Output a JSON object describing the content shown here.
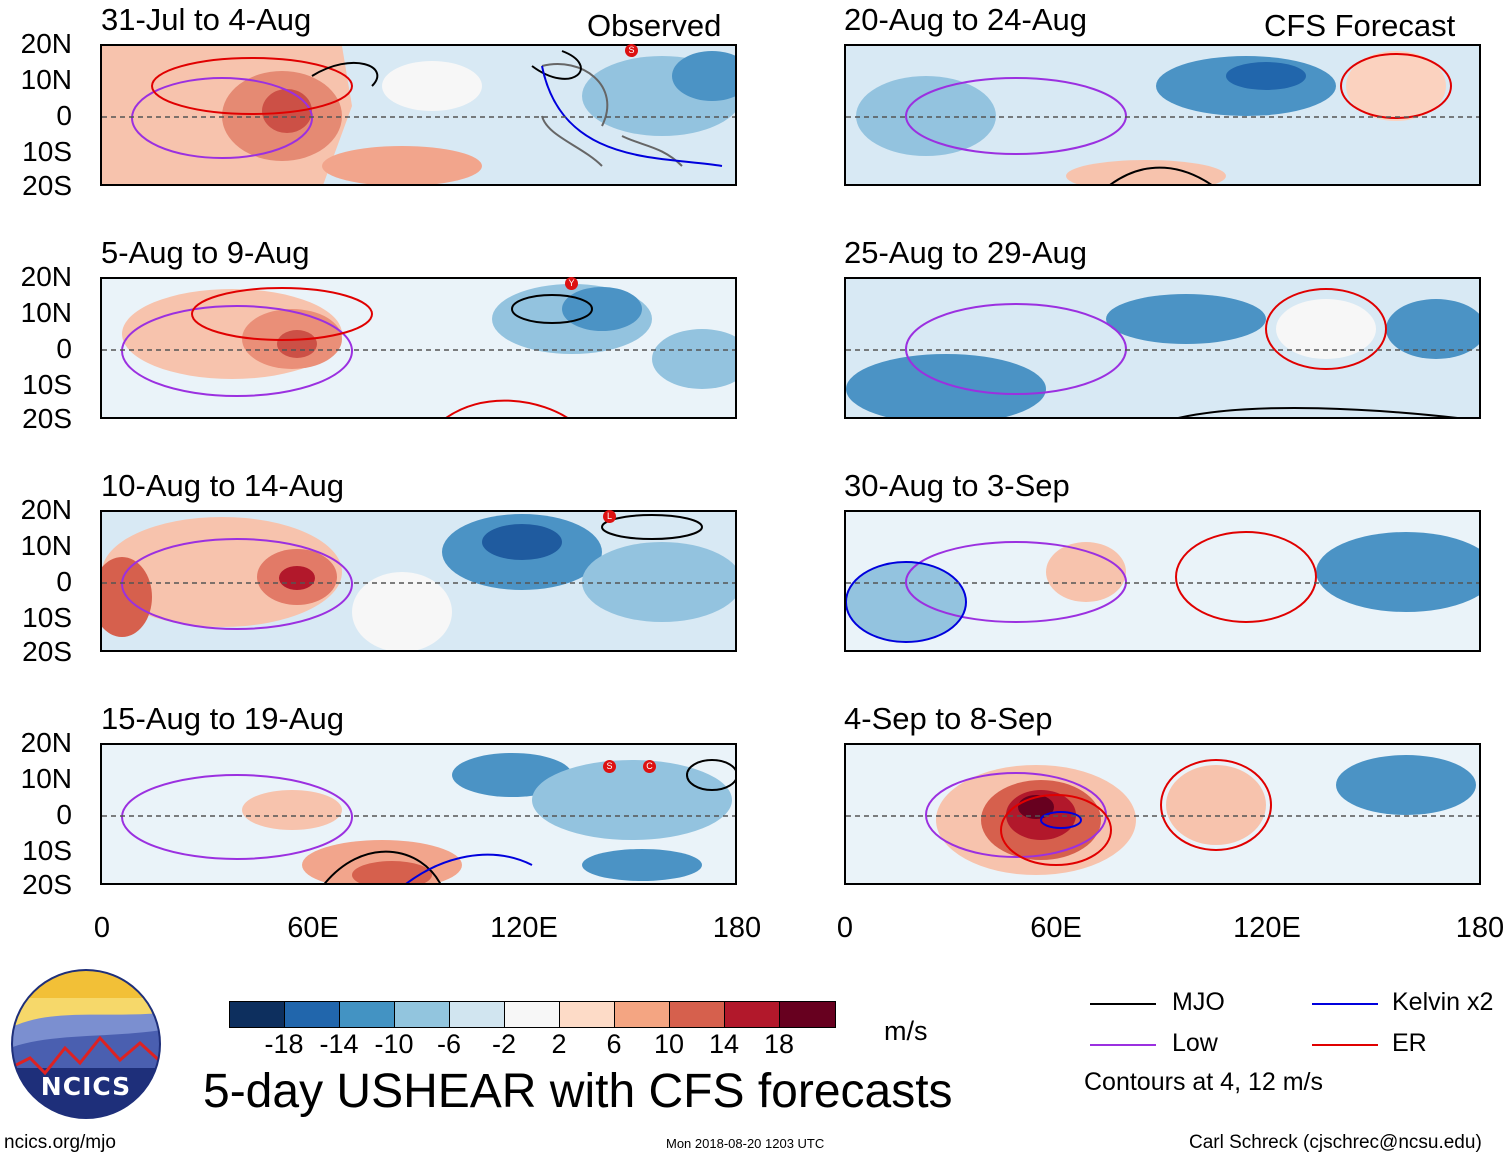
{
  "headers": {
    "left": "Observed",
    "right": "CFS Forecast"
  },
  "panels_left": [
    {
      "title": "31-Jul to 4-Aug"
    },
    {
      "title": "5-Aug to 9-Aug"
    },
    {
      "title": "10-Aug to 14-Aug"
    },
    {
      "title": "15-Aug to 19-Aug"
    }
  ],
  "panels_right": [
    {
      "title": "20-Aug to 24-Aug"
    },
    {
      "title": "25-Aug to 29-Aug"
    },
    {
      "title": "30-Aug to 3-Sep"
    },
    {
      "title": "4-Sep to 8-Sep"
    }
  ],
  "y_ticks": [
    "20N",
    "10N",
    "0",
    "10S",
    "20S"
  ],
  "x_ticks": [
    "0",
    "60E",
    "120E",
    "180"
  ],
  "colorbar": {
    "colors": [
      "#0d2f5e",
      "#2166ac",
      "#4393c3",
      "#92c5de",
      "#d1e5f0",
      "#f7f7f7",
      "#fddbc7",
      "#f4a582",
      "#d6604d",
      "#b2182b",
      "#67001f"
    ],
    "labels": [
      "-18",
      "-14",
      "-10",
      "-6",
      "-2",
      "2",
      "6",
      "10",
      "14",
      "18"
    ],
    "unit": "m/s"
  },
  "legend": {
    "mjo": "MJO",
    "low": "Low",
    "kelvin": "Kelvin x2",
    "er": "ER",
    "mjo_color": "#000000",
    "low_color": "#9b30e0",
    "kelvin_color": "#0000dd",
    "er_color": "#e00000",
    "note": "Contours at 4, 12 m/s"
  },
  "title": "5-day USHEAR with CFS forecasts",
  "logo_text": "NCICS",
  "footer": {
    "url": "ncics.org/mjo",
    "timestamp": "Mon 2018-08-20 1203 UTC",
    "credit": "Carl Schreck (cjschrec@ncsu.edu)"
  },
  "storm_markers": [
    "S",
    "Y",
    "L",
    "S",
    "C"
  ]
}
